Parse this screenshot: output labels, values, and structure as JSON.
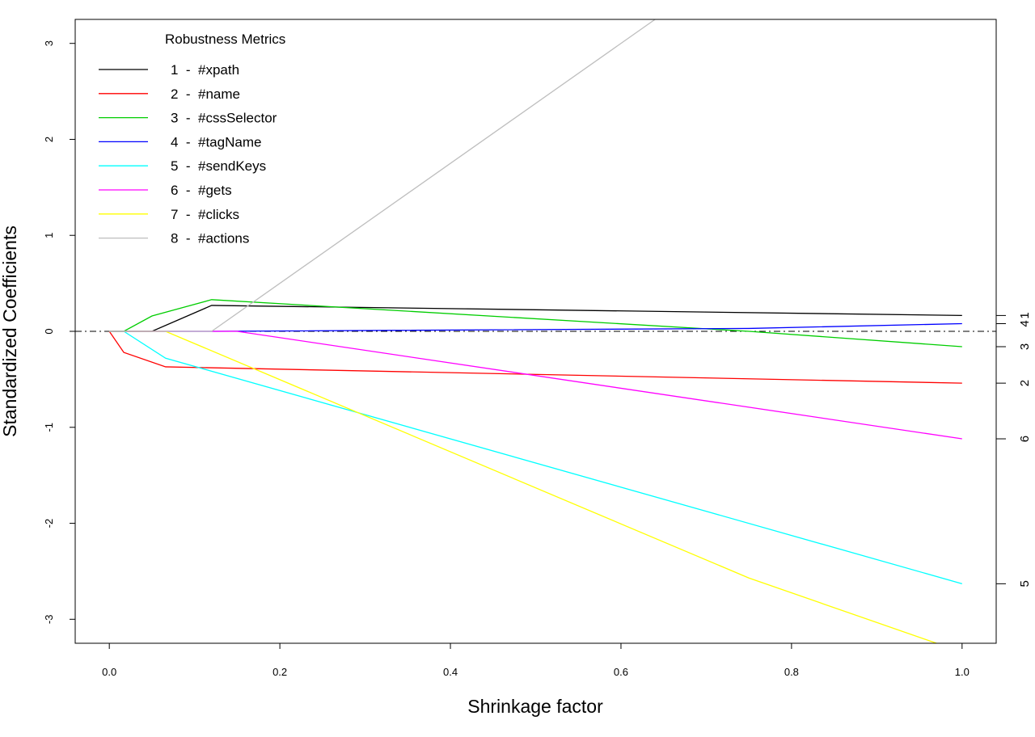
{
  "chart_data": {
    "type": "line",
    "title": "",
    "xlabel": "Shrinkage factor",
    "ylabel": "Standardized Coefficients",
    "xlim": [
      -0.04,
      1.04
    ],
    "ylim": [
      -3.25,
      3.25
    ],
    "xticks": [
      {
        "value": 0.0,
        "label": "0.0"
      },
      {
        "value": 0.2,
        "label": "0.2"
      },
      {
        "value": 0.4,
        "label": "0.4"
      },
      {
        "value": 0.6,
        "label": "0.6"
      },
      {
        "value": 0.8,
        "label": "0.8"
      },
      {
        "value": 1.0,
        "label": "1.0"
      }
    ],
    "yticks": [
      {
        "value": -3,
        "label": "-3"
      },
      {
        "value": -2,
        "label": "-2"
      },
      {
        "value": -1,
        "label": "-1"
      },
      {
        "value": 0,
        "label": "0"
      },
      {
        "value": 1,
        "label": "1"
      },
      {
        "value": 2,
        "label": "2"
      },
      {
        "value": 3,
        "label": "3"
      }
    ],
    "zero_line": true,
    "grid": false,
    "legend": {
      "title": "Robustness Metrics",
      "position": "top-left"
    },
    "right_labels": [
      {
        "label": "1",
        "value": 0.165
      },
      {
        "label": "4",
        "value": 0.08
      },
      {
        "label": "3",
        "value": -0.16
      },
      {
        "label": "2",
        "value": -0.54
      },
      {
        "label": "6",
        "value": -1.12
      },
      {
        "label": "5",
        "value": -2.63
      }
    ],
    "series": [
      {
        "name": "1  -  #xpath",
        "color": "#000000",
        "points": [
          [
            0.0,
            0.0
          ],
          [
            0.05,
            0.0
          ],
          [
            0.12,
            0.27
          ],
          [
            1.0,
            0.165
          ]
        ]
      },
      {
        "name": "2  -  #name",
        "color": "#ff0000",
        "points": [
          [
            0.0,
            0.0
          ],
          [
            0.017,
            -0.22
          ],
          [
            0.066,
            -0.37
          ],
          [
            1.0,
            -0.54
          ]
        ]
      },
      {
        "name": "3  -  #cssSelector",
        "color": "#00cd00",
        "points": [
          [
            0.0,
            0.0
          ],
          [
            0.017,
            0.0
          ],
          [
            0.05,
            0.16
          ],
          [
            0.12,
            0.33
          ],
          [
            0.75,
            0.0
          ],
          [
            1.0,
            -0.16
          ]
        ]
      },
      {
        "name": "4  -  #tagName",
        "color": "#0000ff",
        "points": [
          [
            0.0,
            0.0
          ],
          [
            0.12,
            0.0
          ],
          [
            0.75,
            0.03
          ],
          [
            1.0,
            0.08
          ]
        ]
      },
      {
        "name": "5  -  #sendKeys",
        "color": "#00ffff",
        "points": [
          [
            0.0,
            0.0
          ],
          [
            0.017,
            0.0
          ],
          [
            0.066,
            -0.28
          ],
          [
            1.0,
            -2.63
          ]
        ]
      },
      {
        "name": "6  -  #gets",
        "color": "#ff00ff",
        "points": [
          [
            0.0,
            0.0
          ],
          [
            0.15,
            0.0
          ],
          [
            1.0,
            -1.12
          ]
        ]
      },
      {
        "name": "7  -  #clicks",
        "color": "#ffff00",
        "points": [
          [
            0.0,
            0.0
          ],
          [
            0.066,
            0.0
          ],
          [
            0.75,
            -2.57
          ],
          [
            0.97,
            -3.25
          ]
        ]
      },
      {
        "name": "8  -  #actions",
        "color": "#bebebe",
        "points": [
          [
            0.0,
            0.0
          ],
          [
            0.12,
            0.0
          ],
          [
            0.64,
            3.25
          ]
        ]
      }
    ]
  }
}
